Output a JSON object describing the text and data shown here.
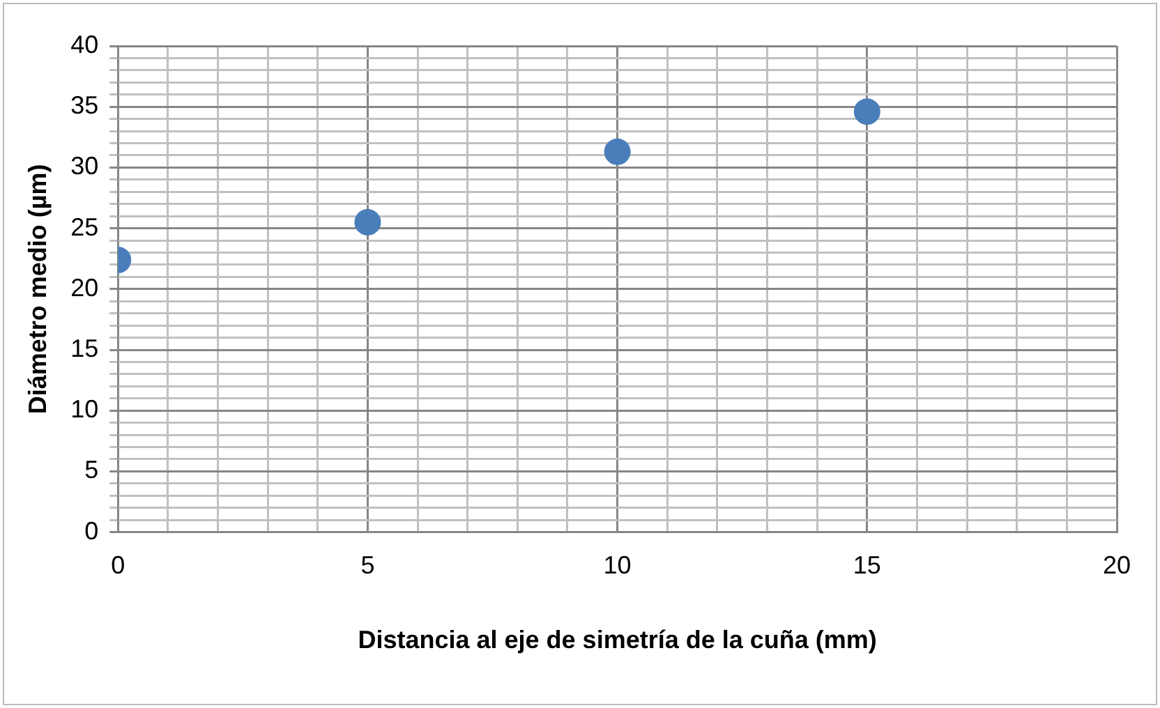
{
  "chart_data": {
    "type": "scatter",
    "xlabel": "Distancia al eje de simetría de la cuña (mm)",
    "ylabel": "Diámetro medio (µm)",
    "x": [
      0,
      5,
      10,
      15
    ],
    "values": [
      22.4,
      25.5,
      31.3,
      34.6
    ],
    "color": "#4a7ebb",
    "marker": "circle",
    "xlim": [
      0,
      20
    ],
    "xticks": [
      0,
      5,
      10,
      15,
      20
    ],
    "ylim": [
      0,
      40
    ],
    "yticks": [
      0,
      5,
      10,
      15,
      20,
      25,
      30,
      35,
      40
    ],
    "grid": true,
    "legend": false
  }
}
